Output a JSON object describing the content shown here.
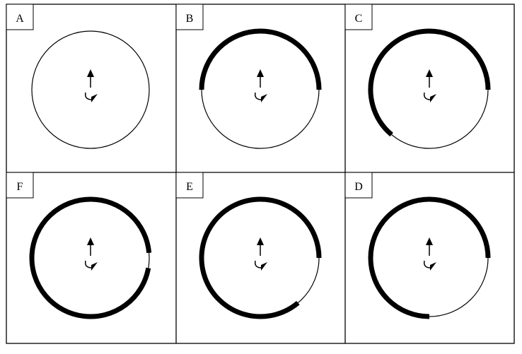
{
  "panels": [
    {
      "label": "A",
      "arcs": []
    },
    {
      "label": "B",
      "arcs": [
        {
          "start": 270,
          "end": 360
        },
        {
          "start": 0,
          "end": 90
        }
      ]
    },
    {
      "label": "C",
      "arcs": [
        {
          "start": 220,
          "end": 360
        },
        {
          "start": 0,
          "end": 90
        }
      ]
    },
    {
      "label": "F",
      "arcs": [
        {
          "start": 0,
          "end": 85
        },
        {
          "start": 100,
          "end": 360
        }
      ]
    },
    {
      "label": "E",
      "arcs": [
        {
          "start": 140,
          "end": 360
        },
        {
          "start": 0,
          "end": 90
        }
      ]
    },
    {
      "label": "D",
      "arcs": [
        {
          "start": 180,
          "end": 360
        },
        {
          "start": 0,
          "end": 90
        }
      ]
    }
  ],
  "colors": {
    "line": "#000000",
    "background": "#ffffff"
  },
  "symbols": {
    "forward": "up-arrow-icon",
    "rotation": "curved-arrow-icon"
  }
}
